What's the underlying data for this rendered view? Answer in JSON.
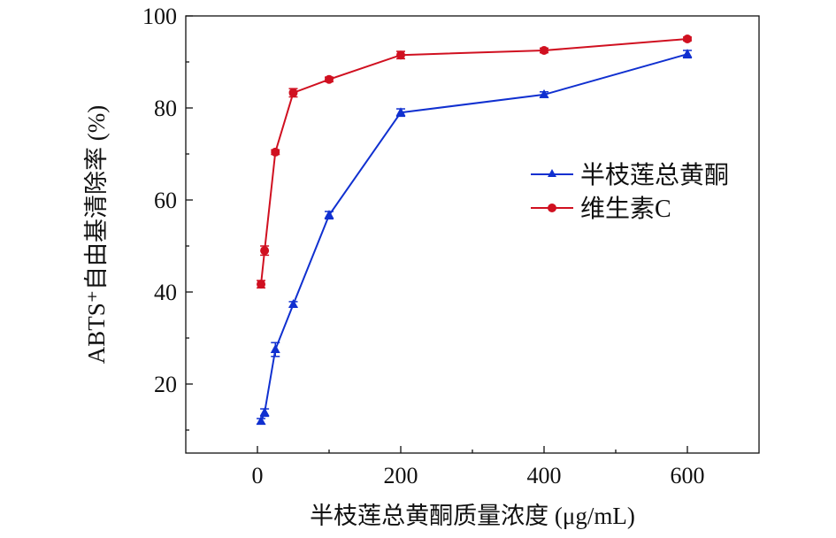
{
  "chart_data": {
    "type": "line",
    "xlabel": "半枝莲总黄酮质量浓度 (μg/mL)",
    "ylabel": "ABTS⁺自由基清除率 (%)",
    "xlim": [
      -100,
      700
    ],
    "ylim": [
      5,
      100
    ],
    "xticks": [
      0,
      200,
      400,
      600
    ],
    "yticks": [
      20,
      40,
      60,
      80,
      100
    ],
    "grid": false,
    "legend_position": "center-right",
    "series": [
      {
        "name": "半枝莲总黄酮",
        "color": "#1030d0",
        "marker": "triangle",
        "x": [
          5,
          10,
          25,
          50,
          100,
          200,
          400,
          600
        ],
        "y": [
          11.9,
          13.8,
          27.5,
          37.3,
          56.7,
          79.0,
          82.9,
          91.7
        ],
        "err": [
          0.6,
          0.8,
          1.5,
          0.6,
          0.8,
          0.8,
          0.6,
          0.8
        ]
      },
      {
        "name": "维生素C",
        "color": "#d01020",
        "marker": "circle",
        "x": [
          5,
          10,
          25,
          50,
          100,
          200,
          400,
          600
        ],
        "y": [
          41.7,
          49.0,
          70.4,
          83.3,
          86.2,
          91.5,
          92.5,
          95.0
        ],
        "err": [
          0.8,
          1.0,
          0.5,
          0.9,
          0.5,
          0.8,
          0.5,
          0.4
        ]
      }
    ]
  }
}
